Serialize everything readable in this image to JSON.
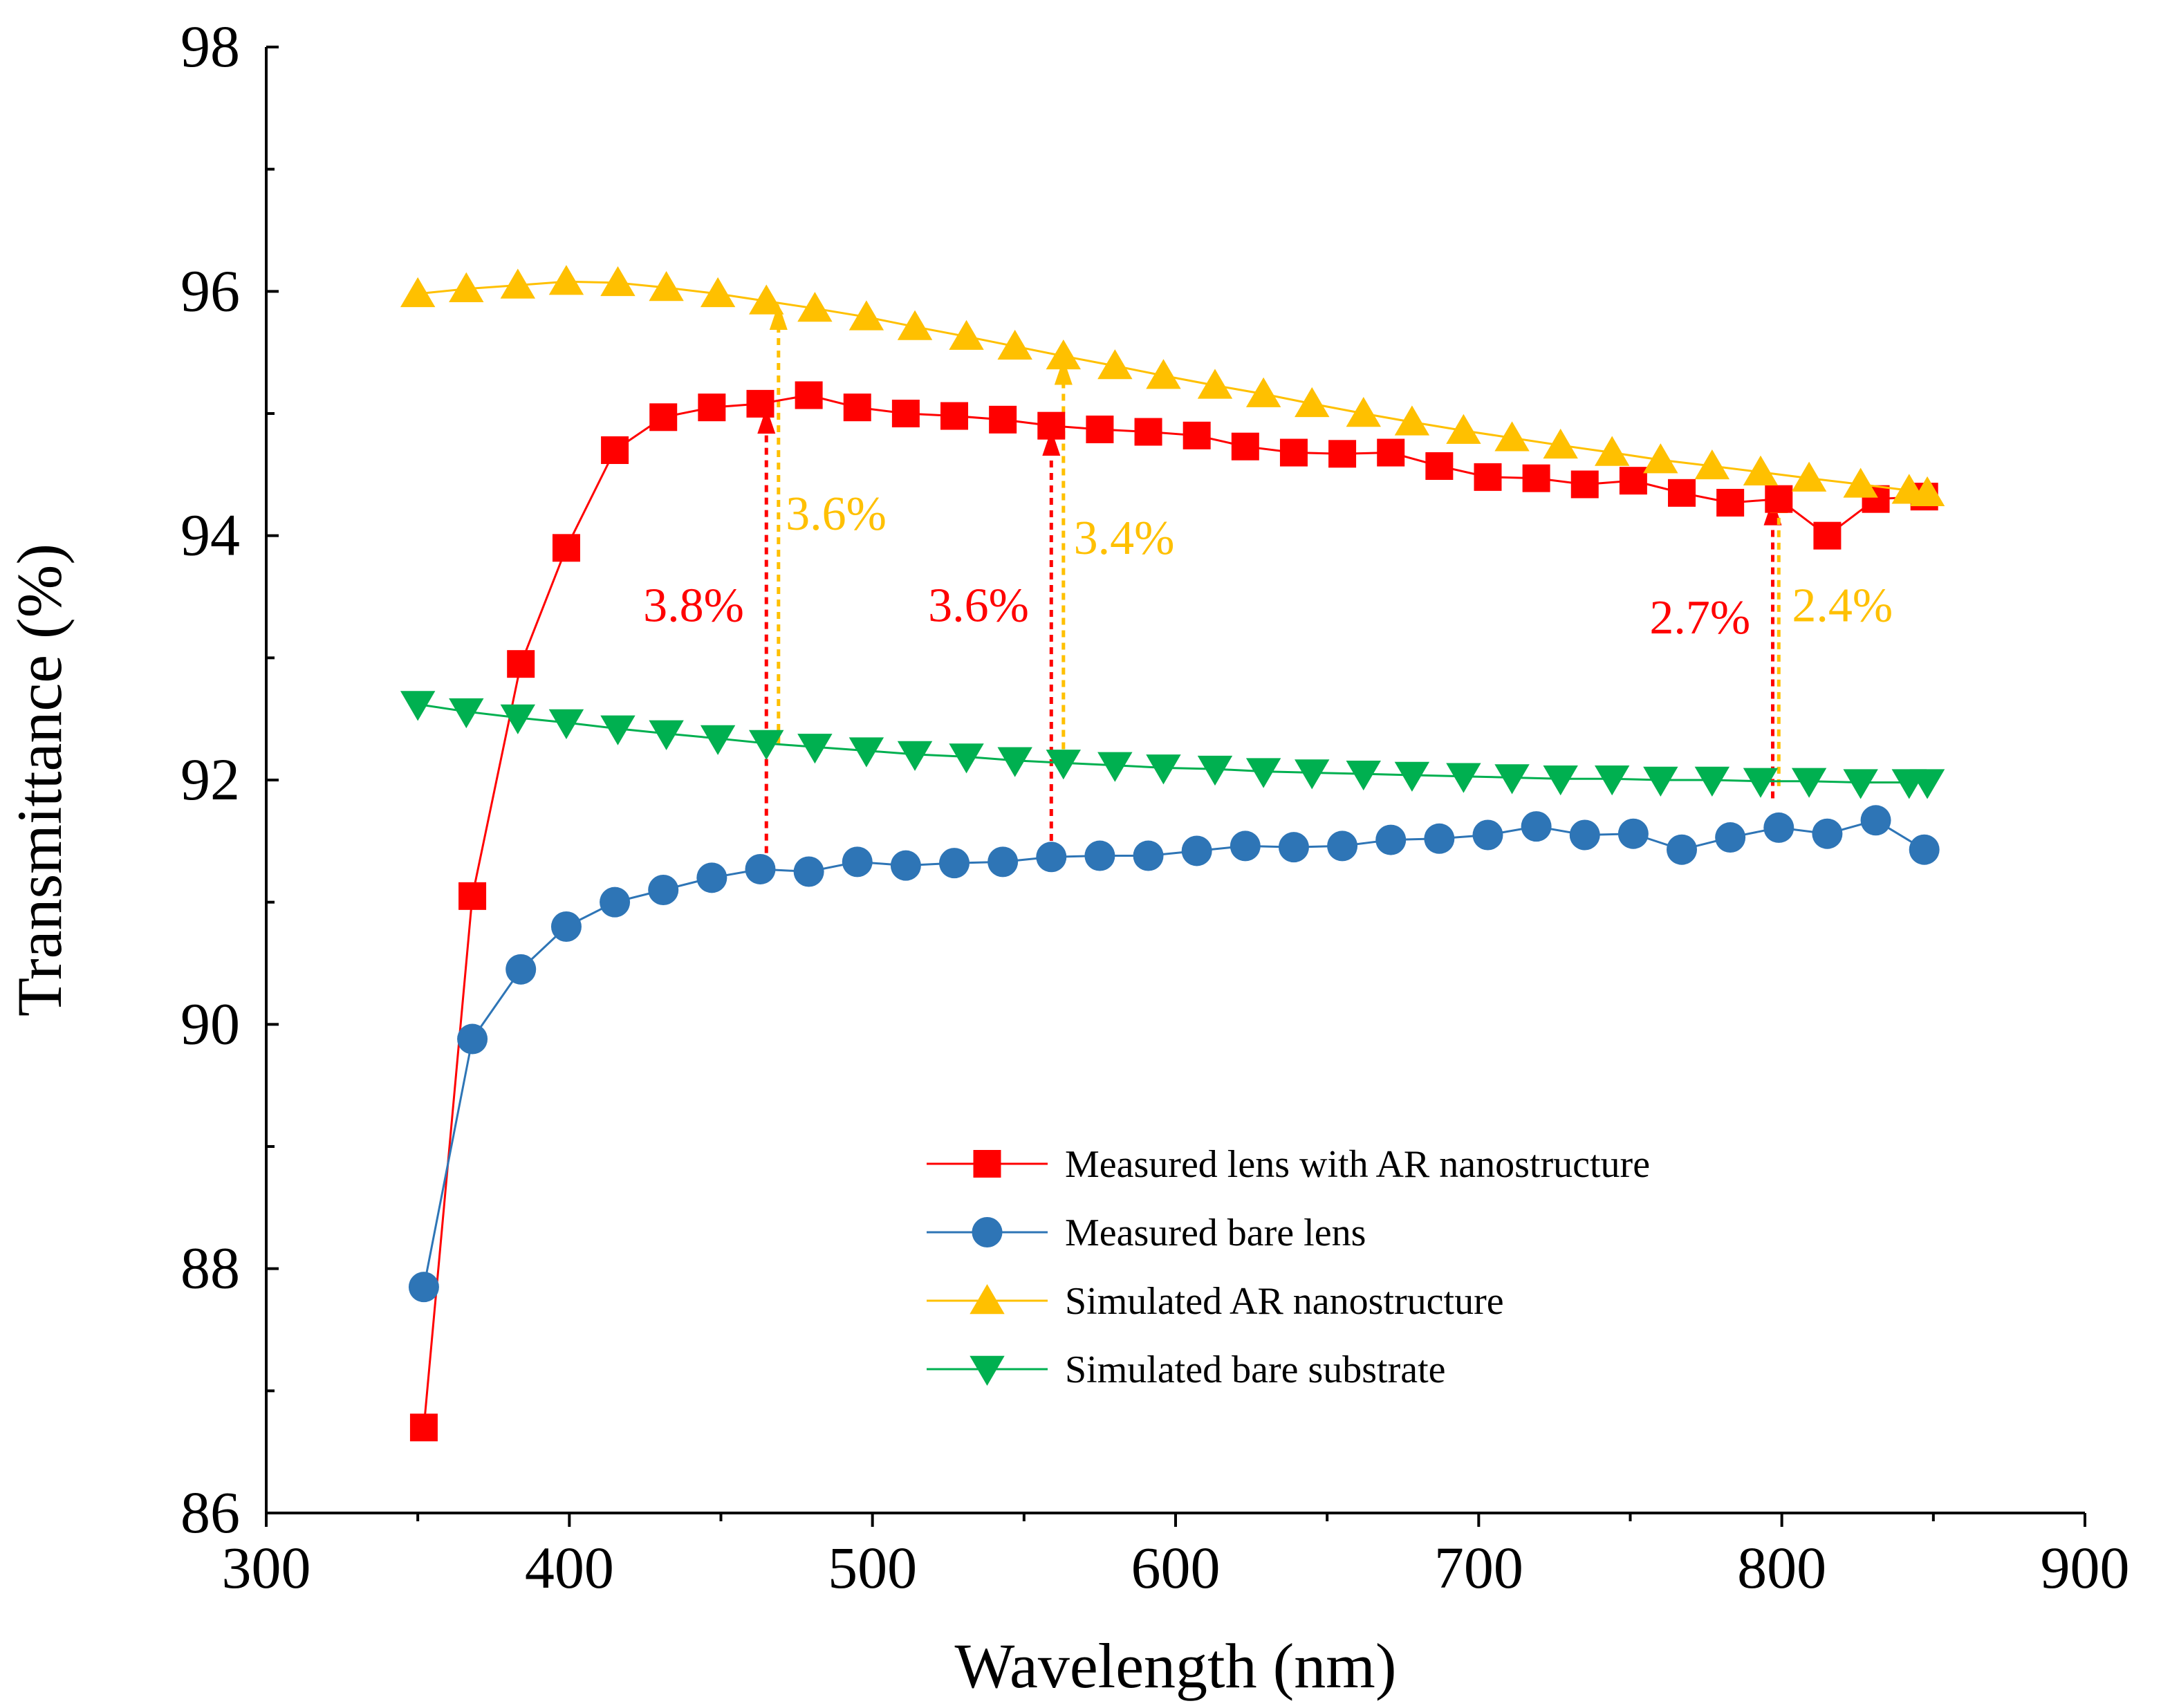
{
  "chart_data": {
    "type": "line",
    "title": "",
    "xlabel": "Wavelength (nm)",
    "ylabel": "Transmittance (%)",
    "xlim": [
      300,
      900
    ],
    "ylim": [
      86,
      98
    ],
    "xticks": [
      300,
      400,
      500,
      600,
      700,
      800,
      900
    ],
    "yticks": [
      86,
      88,
      90,
      92,
      94,
      96,
      98
    ],
    "grid": false,
    "legend_position": "lower-right",
    "series": [
      {
        "name": "Measured lens with AR nanostructure",
        "color": "#ff0000",
        "marker": "square",
        "x": [
          352,
          368,
          384,
          399,
          415,
          431,
          447,
          463,
          479,
          495,
          511,
          527,
          543,
          559,
          575,
          591,
          607,
          623,
          639,
          655,
          671,
          687,
          703,
          719,
          735,
          751,
          767,
          783,
          799,
          815,
          831,
          847
        ],
        "y": [
          86.7,
          91.05,
          92.95,
          93.9,
          94.7,
          94.97,
          95.05,
          95.08,
          95.15,
          95.05,
          95.0,
          94.98,
          94.95,
          94.9,
          94.87,
          94.85,
          94.82,
          94.73,
          94.68,
          94.67,
          94.68,
          94.57,
          94.48,
          94.47,
          94.42,
          94.45,
          94.35,
          94.27,
          94.3,
          94.0,
          94.3,
          94.32
        ]
      },
      {
        "name": "Measured bare lens",
        "color": "#2e75b6",
        "marker": "circle",
        "x": [
          352,
          368,
          384,
          399,
          415,
          431,
          447,
          463,
          479,
          495,
          511,
          527,
          543,
          559,
          575,
          591,
          607,
          623,
          639,
          655,
          671,
          687,
          703,
          719,
          735,
          751,
          767,
          783,
          799,
          815,
          831,
          847
        ],
        "y": [
          87.85,
          89.88,
          90.45,
          90.8,
          91.0,
          91.1,
          91.2,
          91.27,
          91.25,
          91.33,
          91.3,
          91.32,
          91.33,
          91.37,
          91.38,
          91.38,
          91.42,
          91.46,
          91.45,
          91.46,
          91.51,
          91.52,
          91.55,
          91.62,
          91.55,
          91.56,
          91.43,
          91.53,
          91.61,
          91.56,
          91.67,
          91.43
        ]
      },
      {
        "name": "Simulated AR nanostructure",
        "color": "#ffc000",
        "marker": "triangle-up",
        "x": [
          350,
          366,
          383,
          399,
          416,
          432,
          449,
          465,
          481,
          498,
          514,
          531,
          547,
          563,
          580,
          596,
          613,
          629,
          645,
          662,
          678,
          695,
          711,
          727,
          744,
          760,
          777,
          793,
          809,
          826,
          842,
          848
        ],
        "y": [
          95.98,
          96.02,
          96.05,
          96.08,
          96.07,
          96.03,
          95.98,
          95.92,
          95.86,
          95.79,
          95.71,
          95.63,
          95.55,
          95.47,
          95.39,
          95.31,
          95.23,
          95.16,
          95.08,
          95.0,
          94.93,
          94.86,
          94.8,
          94.74,
          94.68,
          94.62,
          94.57,
          94.52,
          94.47,
          94.42,
          94.37,
          94.35
        ]
      },
      {
        "name": "Simulated bare substrate",
        "color": "#00b050",
        "marker": "triangle-down",
        "x": [
          350,
          366,
          383,
          399,
          416,
          432,
          449,
          465,
          481,
          498,
          514,
          531,
          547,
          563,
          580,
          596,
          613,
          629,
          645,
          662,
          678,
          695,
          711,
          727,
          744,
          760,
          777,
          793,
          809,
          826,
          842,
          848
        ],
        "y": [
          92.62,
          92.56,
          92.51,
          92.47,
          92.42,
          92.38,
          92.34,
          92.3,
          92.27,
          92.24,
          92.21,
          92.19,
          92.16,
          92.14,
          92.12,
          92.1,
          92.09,
          92.07,
          92.06,
          92.05,
          92.04,
          92.03,
          92.02,
          92.01,
          92.01,
          92.0,
          92.0,
          91.99,
          91.99,
          91.98,
          91.98,
          91.98
        ]
      }
    ],
    "annotations": [
      {
        "text": "3.8%",
        "color": "#ff0000",
        "arrow_x": 465,
        "y_from": 91.3,
        "y_to": 95.05,
        "label_x": 441,
        "label_y": 93.3
      },
      {
        "text": "3.6%",
        "color": "#ffc000",
        "arrow_x": 469,
        "y_from": 92.3,
        "y_to": 95.9,
        "label_x": 488,
        "label_y": 94.05
      },
      {
        "text": "3.6%",
        "color": "#ff0000",
        "arrow_x": 559,
        "y_from": 91.4,
        "y_to": 94.87,
        "label_x": 535,
        "label_y": 93.3
      },
      {
        "text": "3.4%",
        "color": "#ffc000",
        "arrow_x": 563,
        "y_from": 92.15,
        "y_to": 95.45,
        "label_x": 583,
        "label_y": 93.85
      },
      {
        "text": "2.7%",
        "color": "#ff0000",
        "arrow_x": 797,
        "y_from": 91.85,
        "y_to": 94.3,
        "label_x": 773,
        "label_y": 93.2
      },
      {
        "text": "2.4%",
        "color": "#ffc000",
        "arrow_x": 799,
        "y_from": 91.95,
        "y_to": 94.4,
        "label_x": 820,
        "label_y": 93.3
      }
    ]
  }
}
